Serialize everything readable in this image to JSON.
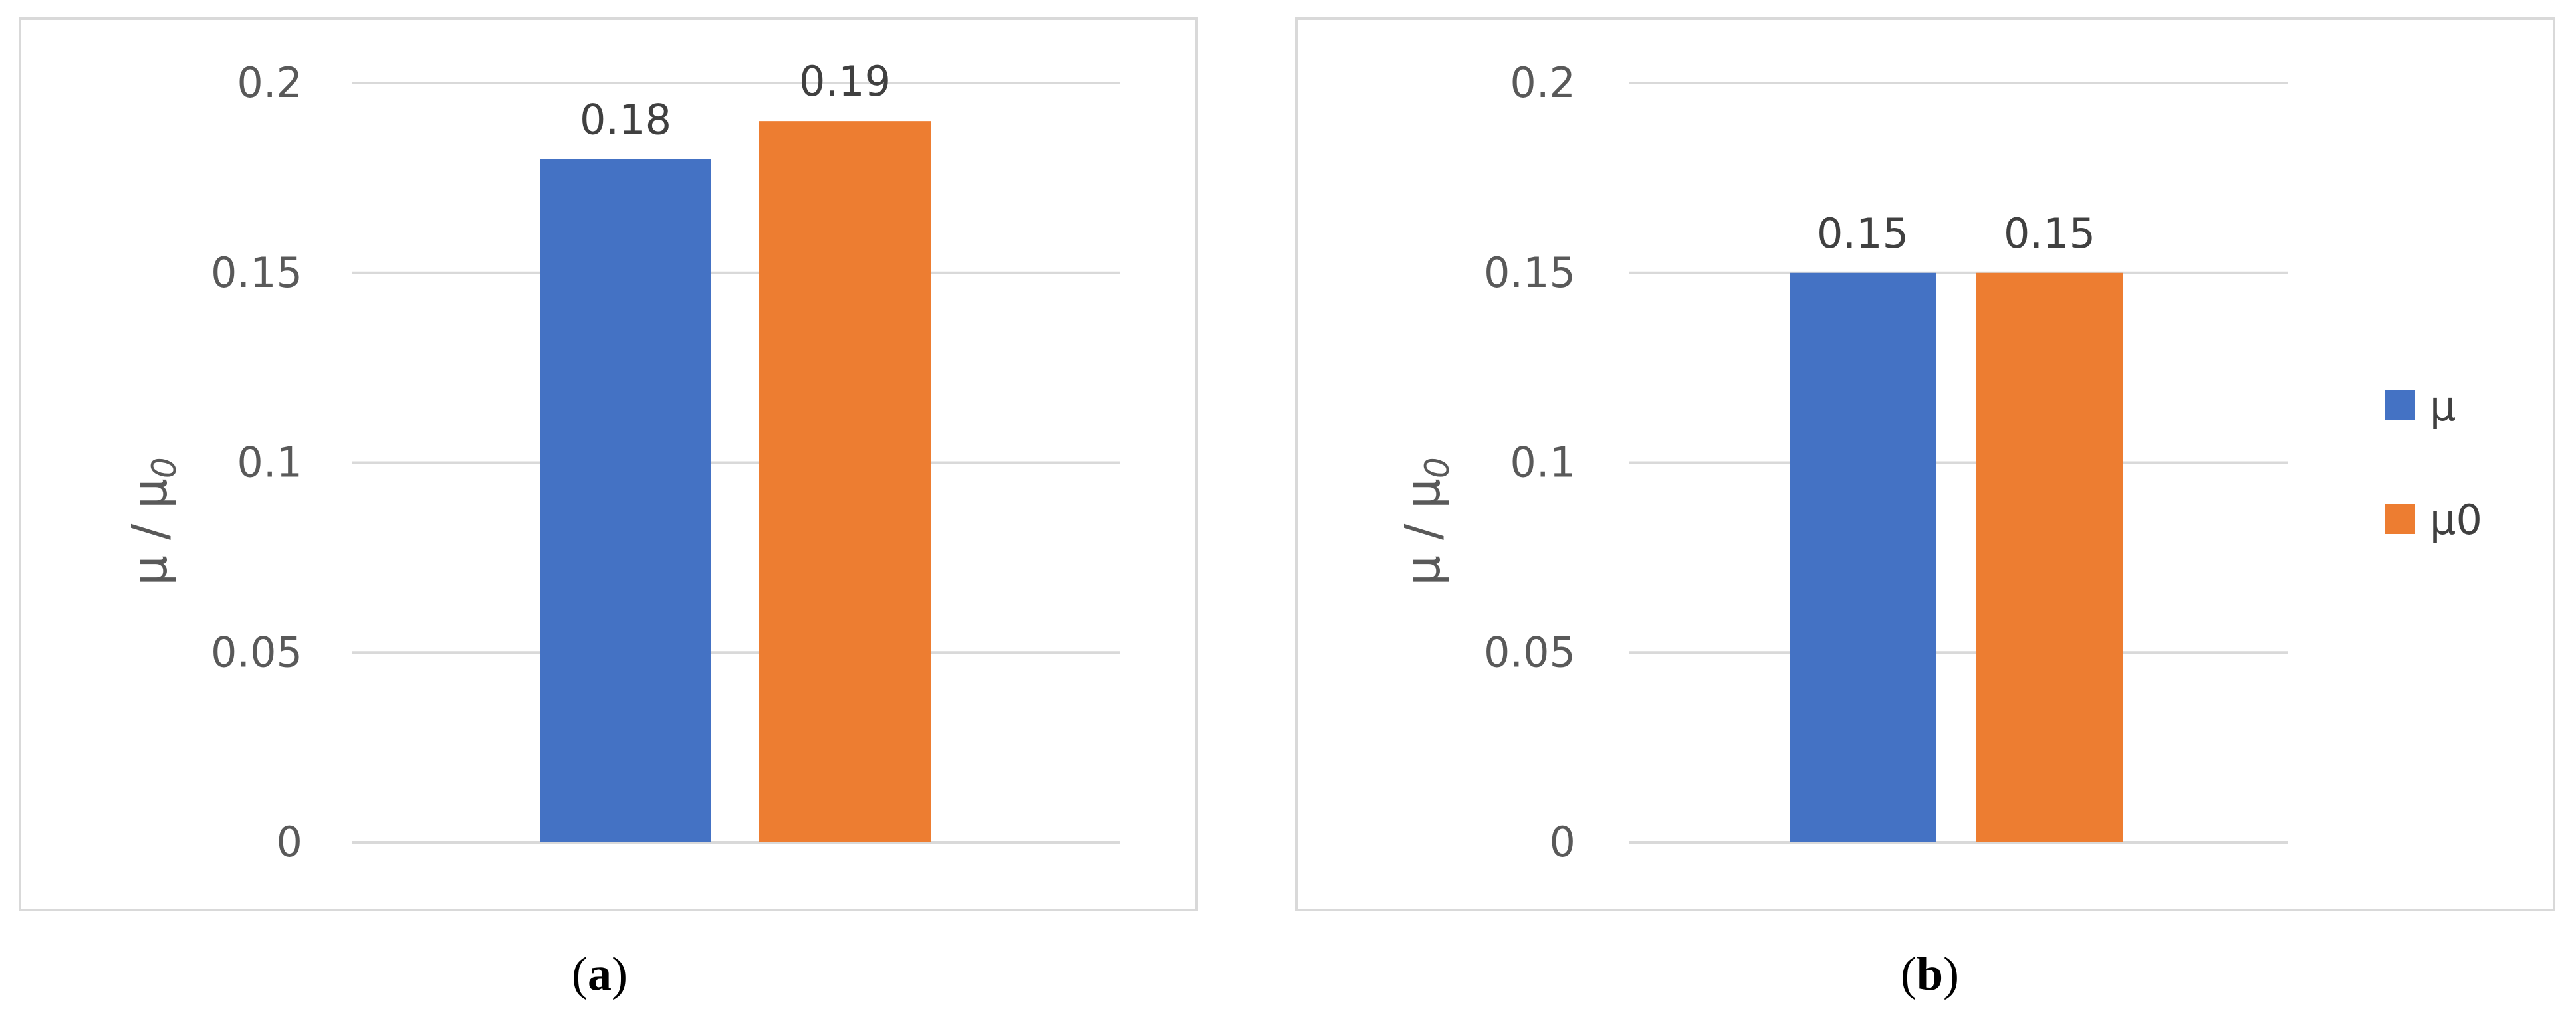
{
  "colors": {
    "mu": "#4472C4",
    "mu0": "#ED7D31",
    "grid": "#D9D9D9",
    "frame": "#D9D9D9"
  },
  "legend": {
    "mu": "μ",
    "mu0": "μ0"
  },
  "panels": [
    {
      "caption_open": "(",
      "caption_letter": "a",
      "caption_close": ")",
      "ylabel_main": "μ / μ",
      "ylabel_sub": "0"
    },
    {
      "caption_open": "(",
      "caption_letter": "b",
      "caption_close": ")",
      "ylabel_main": "μ / μ",
      "ylabel_sub": "0"
    }
  ],
  "chart_data": [
    {
      "type": "bar",
      "series": [
        {
          "name": "μ",
          "values": [
            0.18
          ]
        },
        {
          "name": "μ0",
          "values": [
            0.19
          ]
        }
      ],
      "data_labels": [
        "0.18",
        "0.19"
      ],
      "yticks": [
        "0",
        "0.05",
        "0.1",
        "0.15",
        "0.2"
      ],
      "ylim": [
        0,
        0.2
      ],
      "grid": true,
      "legend": "none"
    },
    {
      "type": "bar",
      "series": [
        {
          "name": "μ",
          "values": [
            0.15
          ]
        },
        {
          "name": "μ0",
          "values": [
            0.15
          ]
        }
      ],
      "data_labels": [
        "0.15",
        "0.15"
      ],
      "yticks": [
        "0",
        "0.05",
        "0.1",
        "0.15",
        "0.2"
      ],
      "ylim": [
        0,
        0.2
      ],
      "grid": true,
      "legend": "right"
    }
  ]
}
